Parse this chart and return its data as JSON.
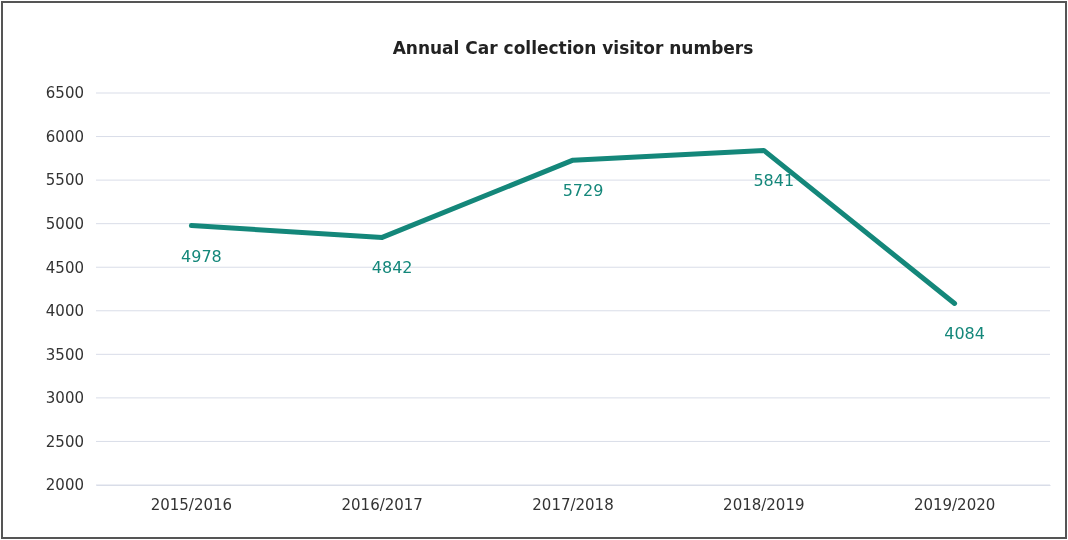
{
  "chart_data": {
    "type": "line",
    "title": "Annual Car collection visitor numbers",
    "categories": [
      "2015/2016",
      "2016/2017",
      "2017/2018",
      "2018/2019",
      "2019/2020"
    ],
    "series": [
      {
        "color": "#14877a",
        "values": [
          4978,
          4842,
          5729,
          5841,
          4084
        ]
      }
    ],
    "ylim": [
      2000,
      6500
    ],
    "yticks": [
      2000,
      2500,
      3000,
      3500,
      4000,
      4500,
      5000,
      5500,
      6000,
      6500
    ],
    "grid": "y",
    "data_labels": true,
    "line_style": "solid"
  }
}
